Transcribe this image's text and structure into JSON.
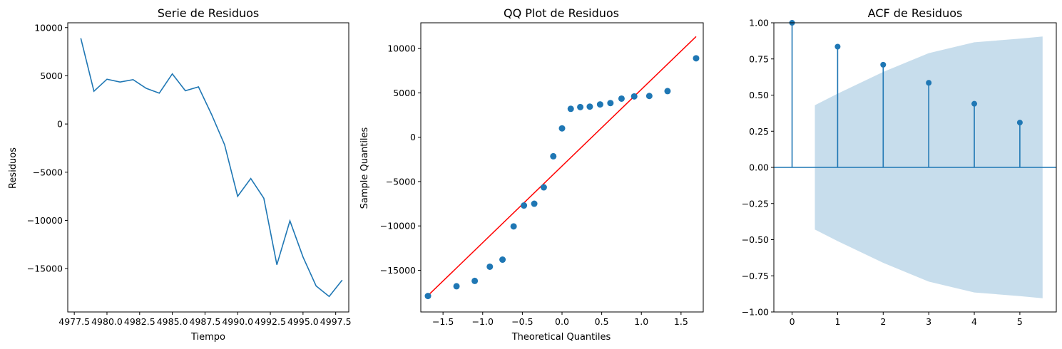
{
  "chart_data": [
    {
      "type": "line",
      "title": "Serie de Residuos",
      "xlabel": "Tiempo",
      "ylabel": "Residuos",
      "xlim": [
        4977.0,
        4998.5
      ],
      "ylim": [
        -19500,
        10500
      ],
      "xticks": [
        4977.5,
        4980.0,
        4982.5,
        4985.0,
        4987.5,
        4990.0,
        4992.5,
        4995.0,
        4997.5
      ],
      "xticklabels": [
        "4977.5",
        "4980.0",
        "4982.5",
        "4985.0",
        "4987.5",
        "4990.0",
        "4992.5",
        "4995.0",
        "4997.5"
      ],
      "yticks": [
        10000,
        5000,
        0,
        -5000,
        -10000,
        -15000
      ],
      "yticklabels": [
        "10000",
        "5000",
        "0",
        "−5000",
        "−10000",
        "−15000"
      ],
      "series": [
        {
          "color": "#1f77b4",
          "x": [
            4978,
            4979,
            4980,
            4981,
            4982,
            4983,
            4984,
            4985,
            4986,
            4987,
            4988,
            4989,
            4990,
            4991,
            4992,
            4993,
            4994,
            4995,
            4996,
            4997,
            4998
          ],
          "y": [
            8900,
            3400,
            4650,
            4350,
            4600,
            3700,
            3200,
            5200,
            3450,
            3850,
            1000,
            -2150,
            -7500,
            -5650,
            -7700,
            -14600,
            -10050,
            -13800,
            -16800,
            -17900,
            -16200
          ]
        }
      ]
    },
    {
      "type": "scatter",
      "title": "QQ Plot de Residuos",
      "xlabel": "Theoretical Quantiles",
      "ylabel": "Sample Quantiles",
      "xlim": [
        -1.78,
        1.78
      ],
      "ylim": [
        -19700,
        12900
      ],
      "xticks": [
        -1.5,
        -1.0,
        -0.5,
        0.0,
        0.5,
        1.0,
        1.5
      ],
      "xticklabels": [
        "−1.5",
        "−1.0",
        "−0.5",
        "0.0",
        "0.5",
        "1.0",
        "1.5"
      ],
      "yticks": [
        10000,
        5000,
        0,
        -5000,
        -10000,
        -15000
      ],
      "yticklabels": [
        "10000",
        "5000",
        "0",
        "−5000",
        "−10000",
        "−15000"
      ],
      "points": {
        "color": "#1f77b4",
        "x": [
          -1.69,
          -1.33,
          -1.1,
          -0.91,
          -0.75,
          -0.61,
          -0.48,
          -0.35,
          -0.23,
          -0.11,
          0.0,
          0.11,
          0.23,
          0.35,
          0.48,
          0.61,
          0.75,
          0.91,
          1.1,
          1.33,
          1.69
        ],
        "y": [
          -17900,
          -16800,
          -16200,
          -14600,
          -13800,
          -10050,
          -7700,
          -7500,
          -5650,
          -2150,
          1000,
          3200,
          3400,
          3450,
          3700,
          3850,
          4350,
          4600,
          4650,
          5200,
          8900
        ]
      },
      "reference_line": {
        "color": "#ff0000",
        "x": [
          -1.69,
          1.69
        ],
        "y": [
          -17850,
          11350
        ]
      }
    },
    {
      "type": "bar",
      "title": "ACF de Residuos",
      "xlim": [
        -0.4,
        5.8
      ],
      "ylim": [
        -1.0,
        1.0
      ],
      "xticks": [
        0,
        1,
        2,
        3,
        4,
        5
      ],
      "xticklabels": [
        "0",
        "1",
        "2",
        "3",
        "4",
        "5"
      ],
      "yticks": [
        1.0,
        0.75,
        0.5,
        0.25,
        0.0,
        -0.25,
        -0.5,
        -0.75,
        -1.0
      ],
      "yticklabels": [
        "1.00",
        "0.75",
        "0.50",
        "0.25",
        "0.00",
        "−0.25",
        "−0.50",
        "−0.75",
        "−1.00"
      ],
      "lags": [
        0,
        1,
        2,
        3,
        4,
        5
      ],
      "values": [
        1.0,
        0.835,
        0.71,
        0.585,
        0.44,
        0.31
      ],
      "color": "#1f77b4",
      "confidence_band": {
        "color": "#1f77b4",
        "opacity": 0.25,
        "x": [
          0.5,
          1.0,
          2.0,
          3.0,
          4.0,
          5.0,
          5.5
        ],
        "upper": [
          0.43,
          0.51,
          0.66,
          0.79,
          0.865,
          0.89,
          0.905
        ],
        "lower": [
          -0.43,
          -0.51,
          -0.66,
          -0.79,
          -0.865,
          -0.89,
          -0.905
        ]
      }
    }
  ]
}
